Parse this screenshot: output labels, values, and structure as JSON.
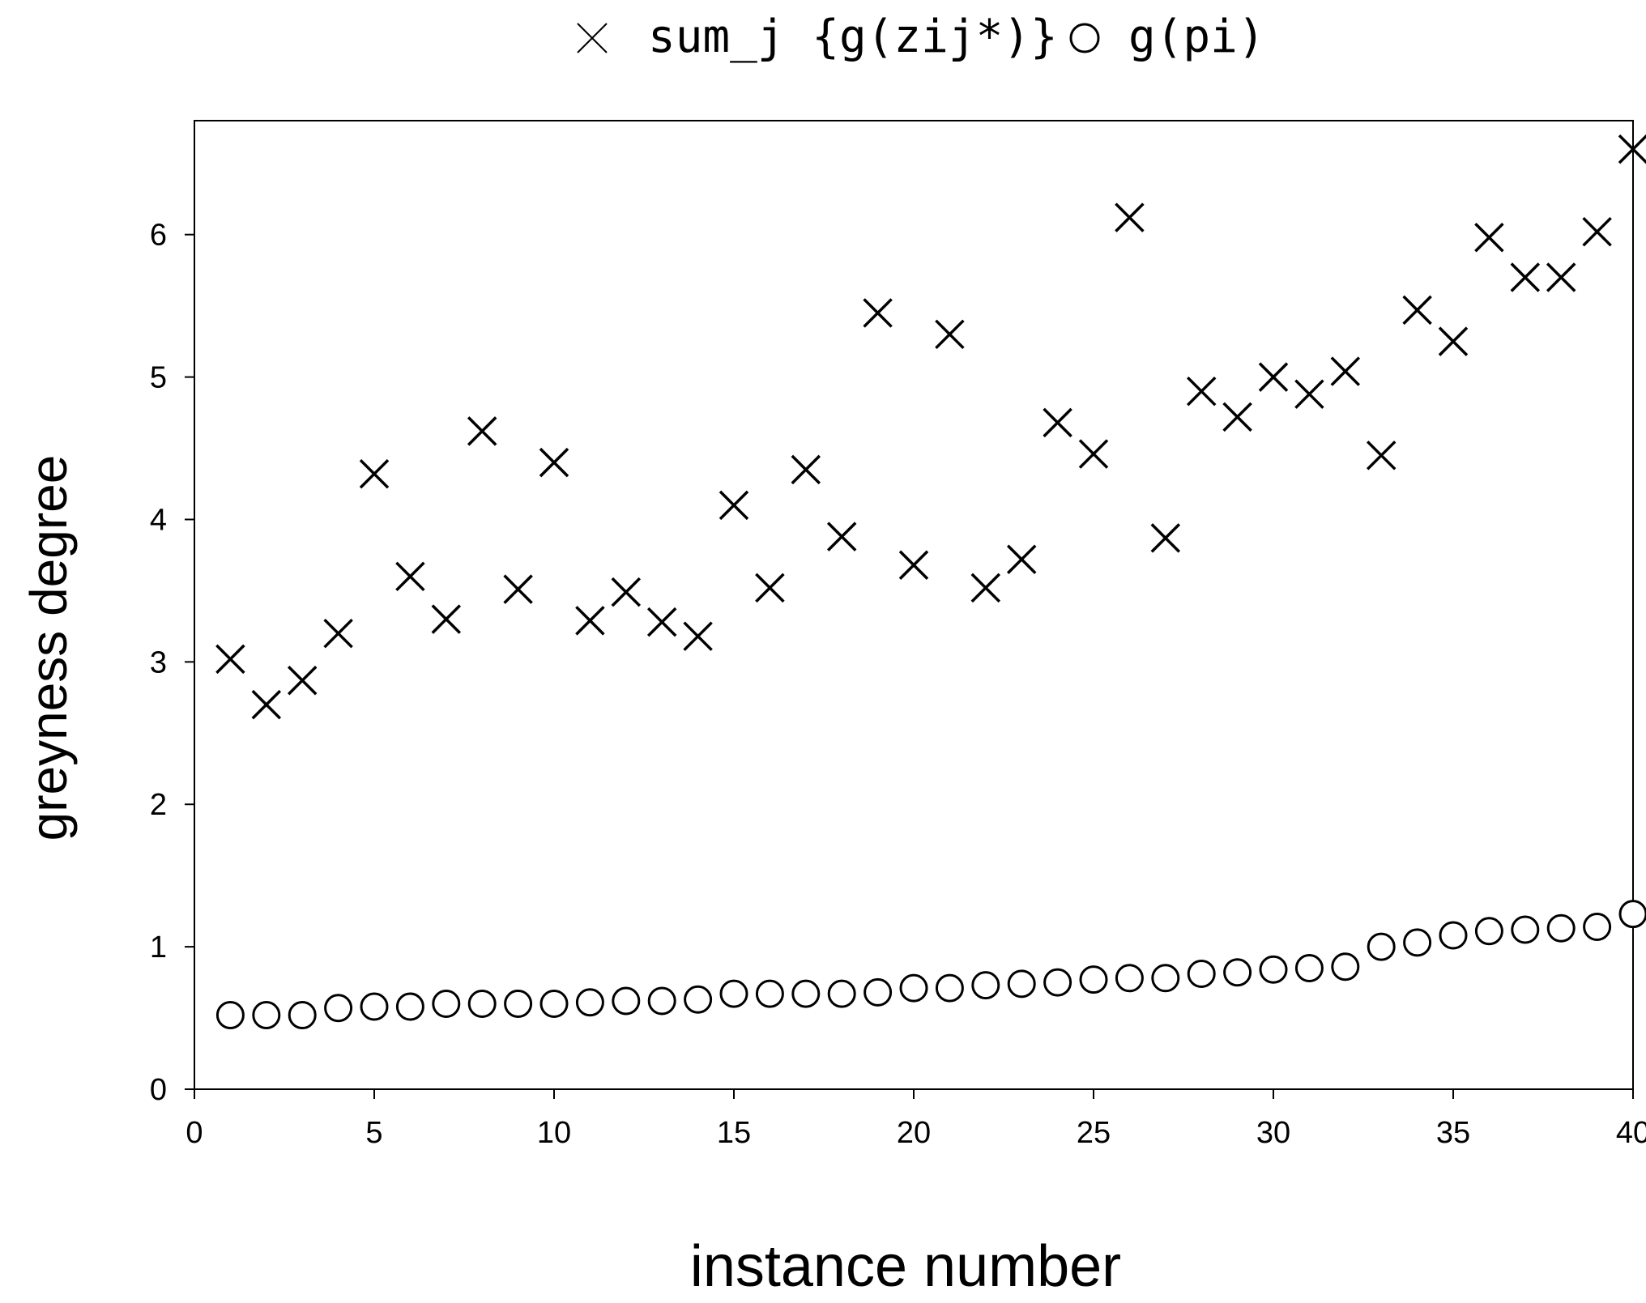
{
  "chart_data": {
    "type": "scatter",
    "title": "",
    "xlabel": "instance number",
    "ylabel": "greyness degree",
    "xlim": [
      0,
      40
    ],
    "ylim": [
      0,
      6.8
    ],
    "xticks": [
      0,
      5,
      10,
      15,
      20,
      25,
      30,
      35,
      40
    ],
    "yticks": [
      0,
      1,
      2,
      3,
      4,
      5,
      6
    ],
    "grid": false,
    "legend_position": "top-center",
    "x": [
      1,
      2,
      3,
      4,
      5,
      6,
      7,
      8,
      9,
      10,
      11,
      12,
      13,
      14,
      15,
      16,
      17,
      18,
      19,
      20,
      21,
      22,
      23,
      24,
      25,
      26,
      27,
      28,
      29,
      30,
      31,
      32,
      33,
      34,
      35,
      36,
      37,
      38,
      39,
      40
    ],
    "series": [
      {
        "name": "sum_j {g(zij*)}",
        "marker": "x",
        "color": "#000000",
        "values": [
          3.02,
          2.7,
          2.87,
          3.2,
          4.32,
          3.6,
          3.3,
          4.62,
          3.51,
          4.4,
          3.29,
          3.49,
          3.28,
          3.18,
          4.1,
          3.52,
          4.35,
          3.88,
          5.45,
          3.68,
          5.3,
          3.52,
          3.72,
          4.68,
          4.46,
          6.12,
          3.87,
          4.9,
          4.72,
          5.0,
          4.88,
          5.04,
          4.45,
          5.47,
          5.25,
          5.98,
          5.7,
          5.7,
          6.02,
          6.6
        ]
      },
      {
        "name": "g(pi)",
        "marker": "circle",
        "color": "#000000",
        "values": [
          0.52,
          0.52,
          0.52,
          0.57,
          0.58,
          0.58,
          0.6,
          0.6,
          0.6,
          0.6,
          0.61,
          0.62,
          0.62,
          0.63,
          0.67,
          0.67,
          0.67,
          0.67,
          0.68,
          0.71,
          0.71,
          0.73,
          0.74,
          0.75,
          0.77,
          0.78,
          0.78,
          0.81,
          0.82,
          0.84,
          0.85,
          0.86,
          1.0,
          1.03,
          1.08,
          1.11,
          1.12,
          1.13,
          1.14,
          1.23
        ]
      }
    ]
  }
}
